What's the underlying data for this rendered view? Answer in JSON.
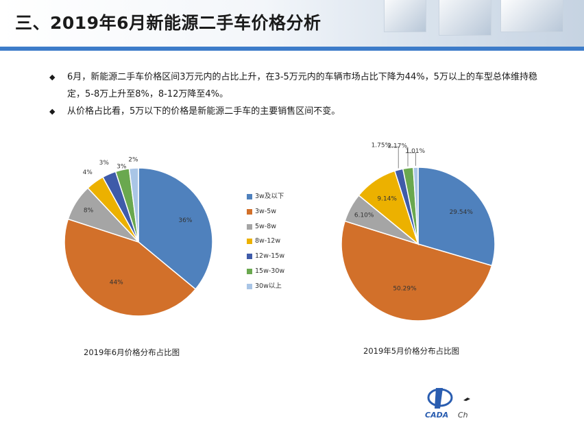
{
  "header": {
    "title": "三、2019年6月新能源二手车价格分析"
  },
  "bullets": [
    "6月，新能源二手车价格区间3万元内的占比上升，在3-5万元内的车辆市场占比下降为44%，5万以上的车型总体维持稳定，5-8万上升至8%，8-12万降至4%。",
    "从价格占比看，5万以下的价格是新能源二手车的主要销售区间不变。"
  ],
  "colors": [
    "#4f81bd",
    "#d2702a",
    "#a5a5a5",
    "#ecb100",
    "#3f5ba9",
    "#6aa84f",
    "#a9c5e6"
  ],
  "chart_data": [
    {
      "type": "pie",
      "title": "2019年6月价格分布占比图",
      "categories": [
        "3w及以下",
        "3w-5w",
        "5w-8w",
        "8w-12w",
        "12w-15w",
        "15w-30w",
        "30w以上"
      ],
      "values": [
        36,
        44,
        8,
        4,
        3,
        3,
        2
      ],
      "labels": [
        "36%",
        "44%",
        "8%",
        "4%",
        "3%",
        "3%",
        "2%"
      ],
      "legend": "right"
    },
    {
      "type": "pie",
      "title": "2019年5月价格分布占比图",
      "categories": [
        "3w及以下",
        "3w-5w",
        "5w-8w",
        "8w-12w",
        "12w-15w",
        "15w-30w",
        "30w以上"
      ],
      "values": [
        29.54,
        50.29,
        6.1,
        9.14,
        1.75,
        2.17,
        1.01
      ],
      "labels": [
        "29.54%",
        "50.29%",
        "6.10%",
        "9.14%",
        "1.75%",
        "2.17%",
        "1.01%"
      ],
      "legend": "none"
    }
  ],
  "logo": {
    "text": "CADA",
    "tail": "Ch"
  }
}
